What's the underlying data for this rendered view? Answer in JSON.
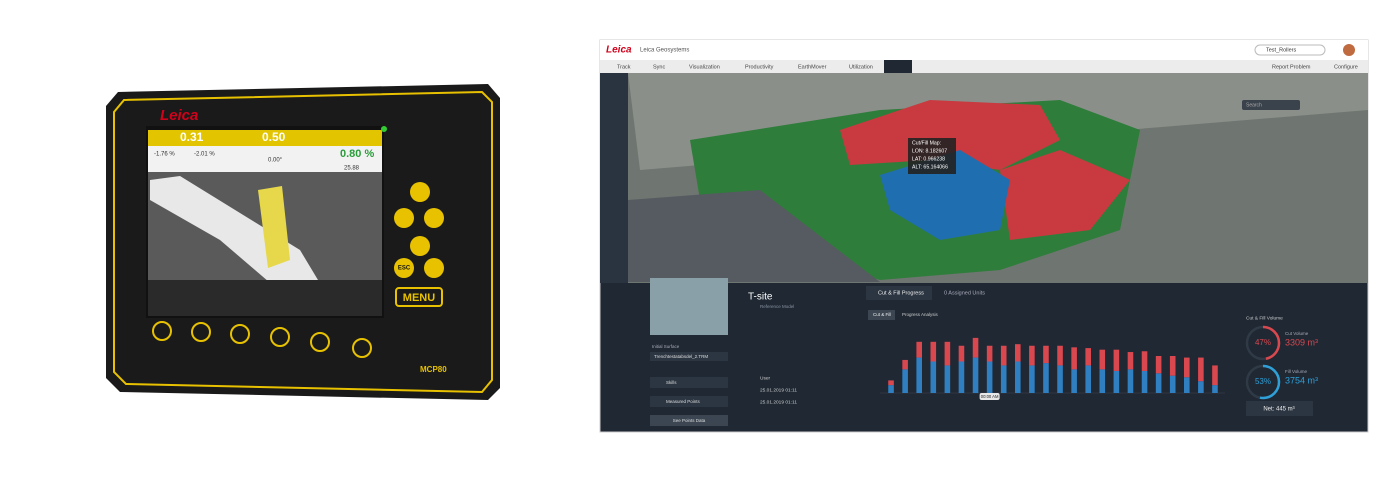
{
  "device": {
    "brand": "Leica",
    "model": "MCP80",
    "readouts": [
      "0.31",
      "0.50",
      "0.80 %"
    ],
    "sub_readouts": [
      "-1.76 %",
      "-2.01 %",
      "0.00°",
      "25.88"
    ],
    "buttons": [
      "ESC",
      "MENU"
    ]
  },
  "app": {
    "brand": "Leica",
    "company": "Leica Geosystems",
    "search": "Test_Rollers",
    "tabs": [
      "Track",
      "Sync",
      "Visualization",
      "Productivity",
      "EarthMover",
      "Utilization"
    ],
    "actions": [
      "Report Problem",
      "Configure"
    ],
    "map_search": "Search",
    "tooltip": [
      "Cut/Fill Map:",
      "LON: 8.182607",
      "LAT: 0.966238",
      "ALT: 65.164066"
    ],
    "site": {
      "name": "T-site",
      "subtitle": "Reference Model",
      "surface_label": "Initial Surface",
      "surface_file": "Trenchtestatabsdel_2.TRM",
      "layers": [
        "Skills",
        "Measured Points"
      ],
      "button": "See Points Data",
      "meta": [
        "User",
        "25.01.2019 01:11",
        "25.01.2019 01:11"
      ]
    },
    "panel_tabs": [
      "Cut & Fill Progress",
      "0 Assigned Units"
    ],
    "chart_tabs": [
      "Cut & Fill",
      "Progress Analysis"
    ],
    "chart_data": {
      "type": "bar",
      "stacked": true,
      "marker": "00:00 AM",
      "ylim": [
        0,
        80
      ],
      "series": [
        {
          "color": "#2f7fc1",
          "values": [
            10,
            30,
            45,
            40,
            35,
            40,
            45,
            40,
            35,
            40,
            35,
            38,
            35,
            30,
            35,
            30,
            28,
            30,
            28,
            25,
            22,
            20,
            15,
            10
          ]
        },
        {
          "color": "#d9474f",
          "values": [
            6,
            12,
            20,
            25,
            30,
            20,
            25,
            20,
            25,
            22,
            25,
            22,
            25,
            28,
            22,
            25,
            27,
            22,
            25,
            22,
            25,
            25,
            30,
            25
          ]
        }
      ]
    },
    "volume": {
      "title": "Cut & Fill Volume",
      "cut": {
        "percent": 47,
        "percent_label": "47%",
        "label": "Cut Volume",
        "value": "3309 m³",
        "color": "#d9474f"
      },
      "fill": {
        "percent": 53,
        "percent_label": "53%",
        "label": "Fill Volume",
        "value": "3754 m³",
        "color": "#2f9fd8"
      },
      "net": "Net: 445 m³"
    }
  }
}
